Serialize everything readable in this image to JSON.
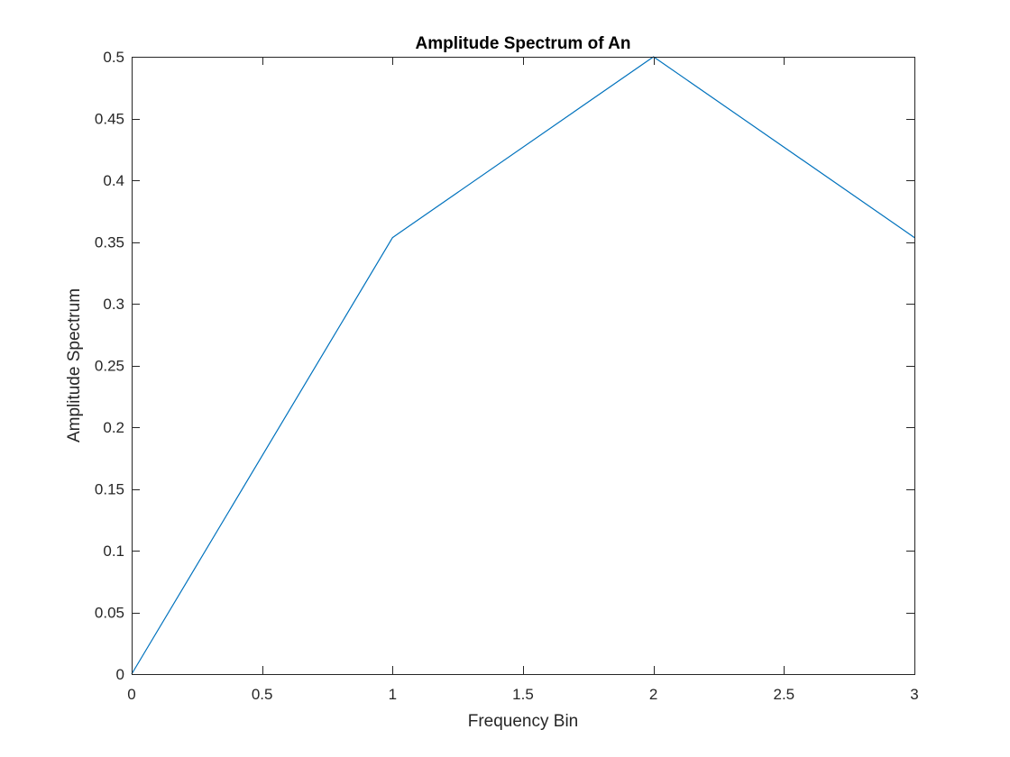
{
  "chart_data": {
    "type": "line",
    "title": "Amplitude Spectrum of An",
    "xlabel": "Frequency Bin",
    "ylabel": "Amplitude Spectrum",
    "xlim": [
      0,
      3
    ],
    "ylim": [
      0,
      0.5
    ],
    "xticks": [
      0,
      0.5,
      1,
      1.5,
      2,
      2.5,
      3
    ],
    "xtick_labels": [
      "0",
      "0.5",
      "1",
      "1.5",
      "2",
      "2.5",
      "3"
    ],
    "yticks": [
      0,
      0.05,
      0.1,
      0.15,
      0.2,
      0.25,
      0.3,
      0.35,
      0.4,
      0.45,
      0.5
    ],
    "ytick_labels": [
      "0",
      "0.05",
      "0.1",
      "0.15",
      "0.2",
      "0.25",
      "0.3",
      "0.35",
      "0.4",
      "0.45",
      "0.5"
    ],
    "grid": false,
    "legend": "none",
    "box": true,
    "series": [
      {
        "x": [
          0,
          1,
          2,
          3
        ],
        "y": [
          0,
          0.3536,
          0.5,
          0.3536
        ],
        "color": "#0072BD"
      }
    ]
  },
  "colors": {
    "axes": "#262626",
    "line": "#0072BD",
    "background": "#ffffff"
  }
}
